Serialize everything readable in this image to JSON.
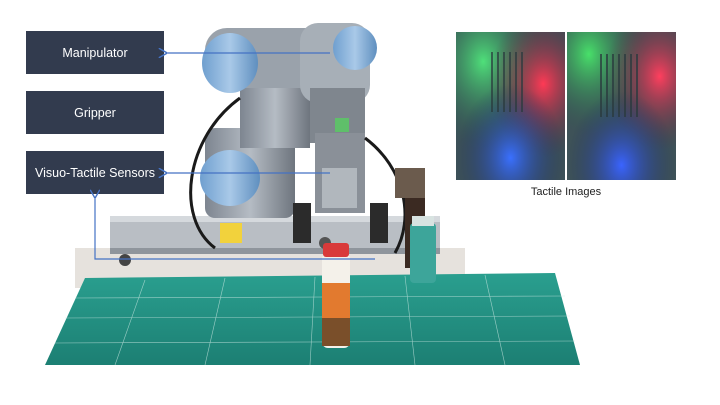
{
  "labels": {
    "manipulator": "Manipulator",
    "gripper": "Gripper",
    "sensors": "Visuo-Tactile Sensors"
  },
  "tactile_caption": "Tactile Images",
  "colors": {
    "label_bg": "#323b4e",
    "arrow": "#4472c4",
    "mat": "#1f8f82"
  }
}
